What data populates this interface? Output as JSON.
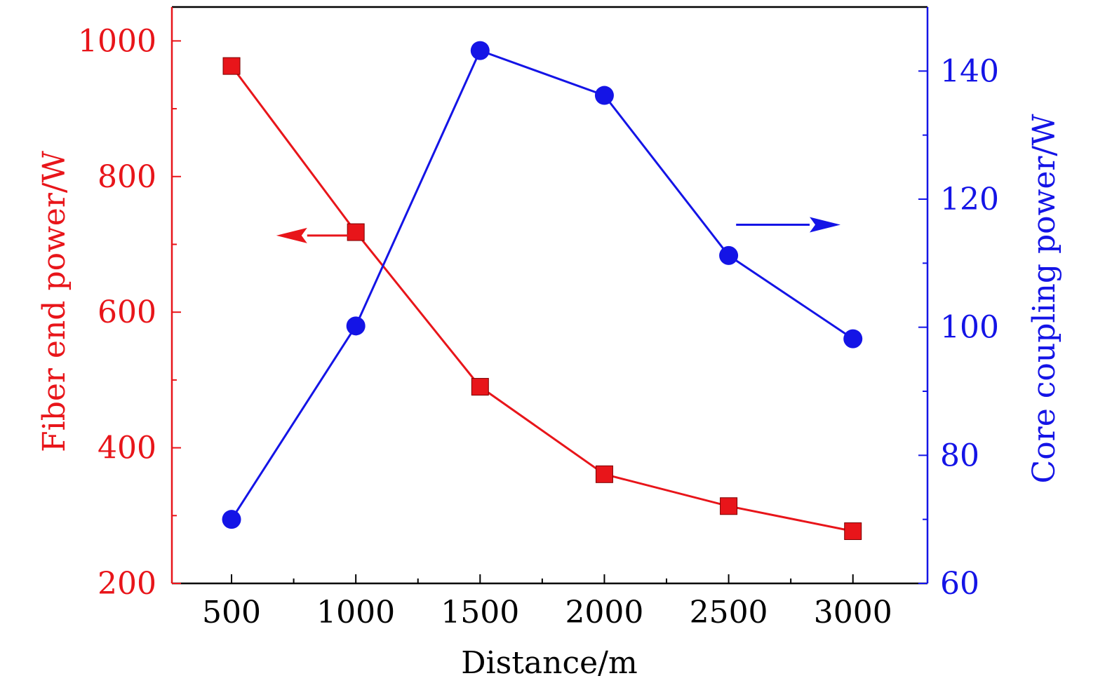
{
  "chart_data": {
    "type": "line",
    "x": [
      500,
      1000,
      1500,
      2000,
      2500,
      3000
    ],
    "xlabel": "Distance/m",
    "xlim": [
      260,
      3300
    ],
    "xticks": [
      500,
      1000,
      1500,
      2000,
      2500,
      3000
    ],
    "x_minor_ticks": [
      750,
      1250,
      1750,
      2250,
      2750
    ],
    "y_left": {
      "label": "Fiber end power/W",
      "lim": [
        200,
        1050
      ],
      "ticks": [
        200,
        400,
        600,
        800,
        1000
      ],
      "minor_ticks": [
        300,
        500,
        700,
        900
      ],
      "color": "#e8151a"
    },
    "y_right": {
      "label": "Core coupling power/W",
      "lim": [
        60,
        150
      ],
      "ticks": [
        60,
        80,
        100,
        120,
        140
      ],
      "minor_ticks": [
        70,
        90,
        110,
        130
      ],
      "color": "#1414e6"
    },
    "series": [
      {
        "axis": "left",
        "marker": "square",
        "color": "#e8151a",
        "values": [
          963,
          718,
          490,
          361,
          314,
          277
        ]
      },
      {
        "axis": "right",
        "marker": "circle",
        "color": "#1414e6",
        "values": [
          70,
          100.2,
          143.2,
          136.2,
          111.2,
          98.2
        ]
      }
    ],
    "annotations": [
      {
        "type": "arrow",
        "direction": "left",
        "axis": "left",
        "from": [
          970,
          713
        ],
        "to": [
          680,
          713
        ],
        "color": "#e8151a"
      },
      {
        "type": "arrow",
        "direction": "right",
        "axis": "right",
        "from": [
          2530,
          116
        ],
        "to": [
          2950,
          116
        ],
        "color": "#1414e6"
      }
    ],
    "grid": false,
    "legend": "none"
  }
}
